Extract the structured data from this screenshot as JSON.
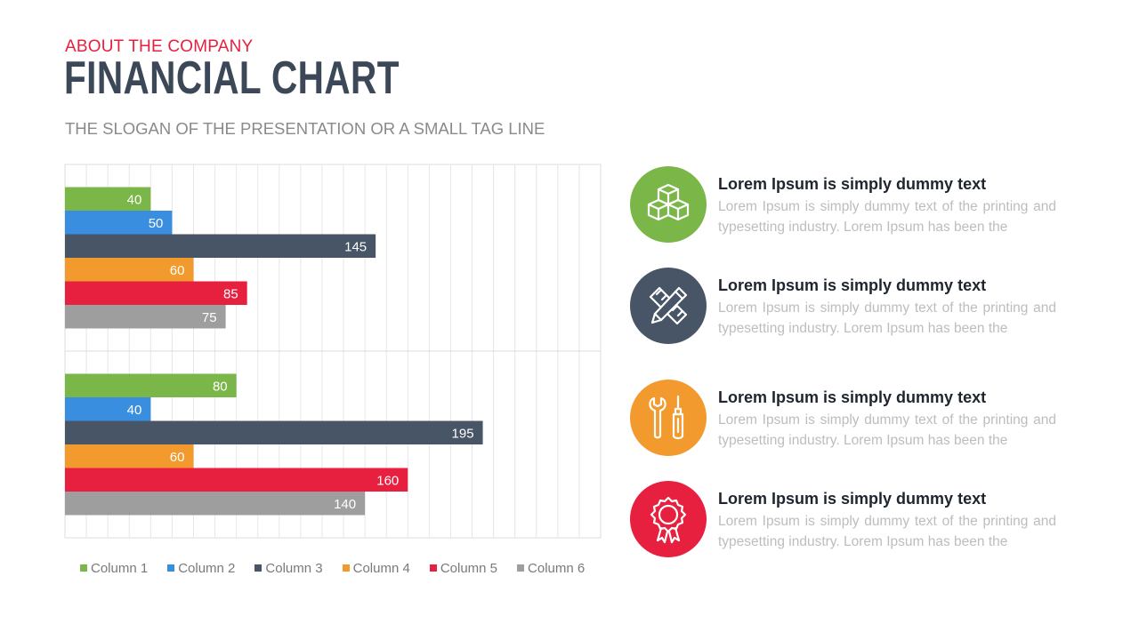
{
  "header": {
    "kicker": "ABOUT THE COMPANY",
    "title": "FINANCIAL CHART",
    "subtitle": "THE SLOGAN OF THE PRESENTATION OR A SMALL TAG LINE"
  },
  "colors": {
    "column1": "#7ab648",
    "column2": "#3a8ee0",
    "column3": "#475566",
    "column4": "#f29a2e",
    "column5": "#e8203f",
    "column6": "#9e9e9e",
    "kicker": "#e8203f",
    "title": "#3c4858"
  },
  "chart_data": {
    "type": "bar",
    "orientation": "horizontal",
    "categories": [
      "",
      ""
    ],
    "series": [
      {
        "name": "Column 1",
        "values": [
          40,
          80
        ]
      },
      {
        "name": "Column 2",
        "values": [
          50,
          40
        ]
      },
      {
        "name": "Column 3",
        "values": [
          145,
          195
        ]
      },
      {
        "name": "Column 4",
        "values": [
          60,
          60
        ]
      },
      {
        "name": "Column 5",
        "values": [
          85,
          160
        ]
      },
      {
        "name": "Column 6",
        "values": [
          75,
          140
        ]
      }
    ],
    "xlim": [
      0,
      250
    ],
    "grid": true,
    "data_labels": true,
    "legend": "bottom"
  },
  "features": [
    {
      "icon": "cubes-icon",
      "color": "#7ab648",
      "heading": "Lorem Ipsum is simply dummy text",
      "body": "Lorem Ipsum is simply dummy text of the printing and typesetting industry. Lorem Ipsum has been the"
    },
    {
      "icon": "ruler-pencil-icon",
      "color": "#475566",
      "heading": "Lorem Ipsum is simply dummy text",
      "body": "Lorem Ipsum is simply dummy text of the printing and typesetting industry. Lorem Ipsum has been the"
    },
    {
      "icon": "wrench-screwdriver-icon",
      "color": "#f29a2e",
      "heading": "Lorem Ipsum is simply dummy text",
      "body": "Lorem Ipsum is simply dummy text of the printing and typesetting industry. Lorem Ipsum has been the"
    },
    {
      "icon": "award-ribbon-icon",
      "color": "#e8203f",
      "heading": "Lorem Ipsum is simply dummy text",
      "body": "Lorem Ipsum is simply dummy text of the printing and typesetting industry. Lorem Ipsum has been the"
    }
  ]
}
